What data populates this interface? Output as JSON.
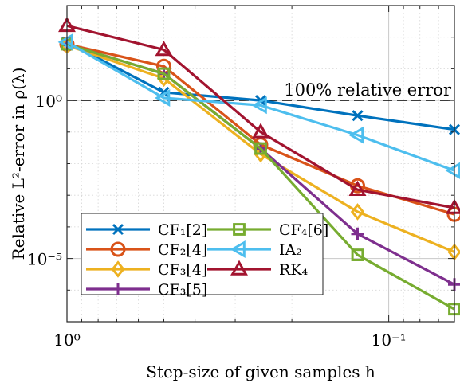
{
  "chart_data": {
    "type": "line",
    "xscale": "log",
    "yscale": "log",
    "xdirection": "reversed",
    "xlabel": "Step-size of given samples h",
    "ylabel": "Relative L²-error in ρ(λ)",
    "xlim": [
      1,
      0.0625
    ],
    "ylim": [
      1e-07,
      1000
    ],
    "grid": true,
    "legend_position": "bottom-left",
    "xticks": [
      {
        "value": 1,
        "label": "10⁰"
      },
      {
        "value": 0.1,
        "label": "10⁻¹"
      }
    ],
    "yticks": [
      {
        "value": 1,
        "label": "10⁰"
      },
      {
        "value": 1e-05,
        "label": "10⁻⁵"
      }
    ],
    "reference_line": {
      "y": 1,
      "label": "100% relative error"
    },
    "x": [
      1,
      0.5,
      0.25,
      0.125,
      0.0625
    ],
    "series": [
      {
        "name": "CF₁[2]",
        "color": "#0072BD",
        "marker": "x",
        "values": [
          70,
          1.8,
          1.0,
          0.33,
          0.12
        ]
      },
      {
        "name": "CF₂[4]",
        "color": "#D95319",
        "marker": "o",
        "values": [
          60,
          12,
          0.04,
          0.002,
          0.00025
        ]
      },
      {
        "name": "CF₃[4]",
        "color": "#EDB120",
        "marker": "diamond",
        "values": [
          55,
          5.0,
          0.02,
          0.0003,
          1.6e-05
        ]
      },
      {
        "name": "CF₃[5]",
        "color": "#7E2F8E",
        "marker": "+",
        "values": [
          60,
          7.0,
          0.03,
          6e-05,
          1.5e-06
        ]
      },
      {
        "name": "CF₄[6]",
        "color": "#77AC30",
        "marker": "square",
        "values": [
          60,
          7.0,
          0.03,
          1.3e-05,
          2.5e-07
        ]
      },
      {
        "name": "IA₂",
        "color": "#4DBEEE",
        "marker": "triangle-left",
        "values": [
          70,
          1.2,
          0.7,
          0.08,
          0.006
        ]
      },
      {
        "name": "RK₄",
        "color": "#A2142F",
        "marker": "triangle-up",
        "values": [
          230,
          40,
          0.1,
          0.0015,
          0.0004
        ]
      }
    ]
  }
}
